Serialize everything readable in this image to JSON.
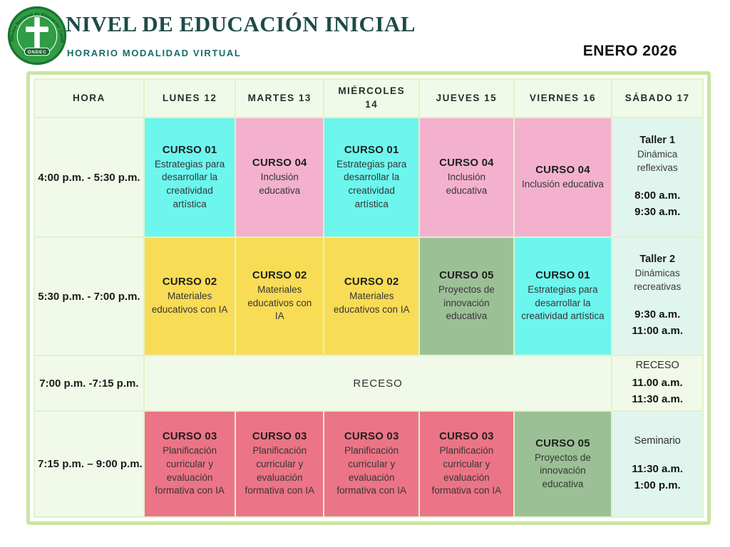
{
  "header": {
    "title": "NIVEL DE EDUCACIÓN INICIAL",
    "subtitle": "HORARIO MODALIDAD VIRTUAL",
    "month_label": "ENERO 2026",
    "logo": {
      "arc_text": "Oficina Nacional de Educación Católica",
      "abbr": "ONDEC"
    }
  },
  "colors": {
    "frame": "#c9e5a0",
    "cell_border": "#e2f1c9",
    "base_bg": "#f1fae8",
    "saturday_bg": "#e1f5ef",
    "cyan": "#6cf6ee",
    "pink": "#f4b1ce",
    "yellow": "#f8dc55",
    "green": "#9cc096",
    "red": "#ec7487"
  },
  "schedule": {
    "columns": [
      "HORA",
      "LUNES 12",
      "MARTES 13",
      "MIÉRCOLES 14",
      "JUEVES 15",
      "VIERNES 16",
      "SÁBADO 17"
    ],
    "rows": [
      {
        "time": "4:00 p.m. - 5:30 p.m.",
        "cells": [
          {
            "course": "CURSO 01",
            "desc": "Estrategias para desarrollar la creatividad artística",
            "color": "cyan"
          },
          {
            "course": "CURSO 04",
            "desc": "Inclusión educativa",
            "color": "pink"
          },
          {
            "course": "CURSO 01",
            "desc": "Estrategias para desarrollar la creatividad artística",
            "color": "cyan"
          },
          {
            "course": "CURSO 04",
            "desc": "Inclusión educativa",
            "color": "pink"
          },
          {
            "course": "CURSO 04",
            "desc": "Inclusión educativa",
            "color": "pink"
          }
        ],
        "saturday": {
          "name": "Taller 1",
          "name_bold": true,
          "desc": "Dinámica reflexivas",
          "times": [
            "8:00 a.m.",
            "9:30 a.m."
          ],
          "bg": "saturday",
          "gap": true
        }
      },
      {
        "time": "5:30 p.m. - 7:00 p.m.",
        "cells": [
          {
            "course": "CURSO 02",
            "desc": "Materiales educativos con IA",
            "color": "yellow"
          },
          {
            "course": "CURSO 02",
            "desc": "Materiales educativos con IA",
            "color": "yellow"
          },
          {
            "course": "CURSO 02",
            "desc": "Materiales educativos con IA",
            "color": "yellow"
          },
          {
            "course": "CURSO 05",
            "desc": "Proyectos de innovación educativa",
            "color": "green"
          },
          {
            "course": "CURSO 01",
            "desc": "Estrategias para desarrollar la creatividad artística",
            "color": "cyan"
          }
        ],
        "saturday": {
          "name": "Taller 2",
          "name_bold": true,
          "desc": "Dinámicas recreativas",
          "times": [
            "9:30 a.m.",
            "11:00 a.m."
          ],
          "bg": "saturday",
          "gap": true
        }
      },
      {
        "time": "7:00 p.m. -7:15 p.m.",
        "merged": "RECESO",
        "saturday": {
          "name": "RECESO",
          "name_bold": false,
          "desc": "",
          "times": [
            "11.00 a.m.",
            "11:30 a.m."
          ],
          "bg": "base",
          "gap": false
        }
      },
      {
        "time": "7:15 p.m. – 9:00 p.m.",
        "cells": [
          {
            "course": "CURSO 03",
            "desc": "Planificación curricular y evaluación formativa con IA",
            "color": "red"
          },
          {
            "course": "CURSO 03",
            "desc": "Planificación curricular y evaluación formativa con IA",
            "color": "red"
          },
          {
            "course": "CURSO 03",
            "desc": "Planificación curricular y evaluación formativa con IA",
            "color": "red"
          },
          {
            "course": "CURSO 03",
            "desc": "Planificación curricular y evaluación formativa con IA",
            "color": "red"
          },
          {
            "course": "CURSO 05",
            "desc": "Proyectos de innovación educativa",
            "color": "green"
          }
        ],
        "saturday": {
          "name": "Seminario",
          "name_bold": false,
          "desc": "",
          "times": [
            "11:30 a.m.",
            "1:00 p.m."
          ],
          "bg": "saturday",
          "gap": true
        }
      }
    ]
  }
}
